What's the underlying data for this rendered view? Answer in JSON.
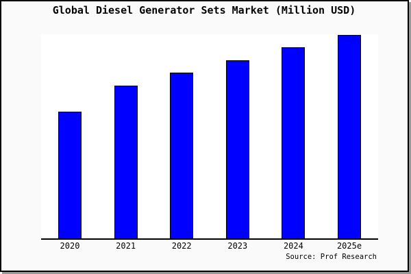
{
  "title": "Global Diesel Generator Sets Market (Million USD)",
  "source_credit": "Source: Prof Research",
  "colors": {
    "bar_fill": "#0000fe",
    "bar_border": "#000000",
    "axis": "#000000",
    "frame_border": "#000000",
    "frame_shadow": "#999999",
    "canvas_background": "#fafafa",
    "plot_background": "#ffffff",
    "text": "#000000"
  },
  "chart_data": {
    "type": "bar",
    "title": "Global Diesel Generator Sets Market (Million USD)",
    "unit": "Million USD",
    "categories": [
      "2020",
      "2021",
      "2022",
      "2023",
      "2024",
      "2025e"
    ],
    "values_relative_pct": [
      62.7,
      75.2,
      81.6,
      87.7,
      93.9,
      100
    ],
    "value_labels_shown": false,
    "y_axis": {
      "visible": false,
      "ticks": [],
      "note": "No y-axis line, tick labels, or gridlines are shown; bar heights are relative, expressed as percent of the tallest bar (2025e = 100)."
    },
    "xlabel": "",
    "ylabel": "",
    "grid": false,
    "legend_position": "none",
    "source": "Source: Prof Research"
  }
}
